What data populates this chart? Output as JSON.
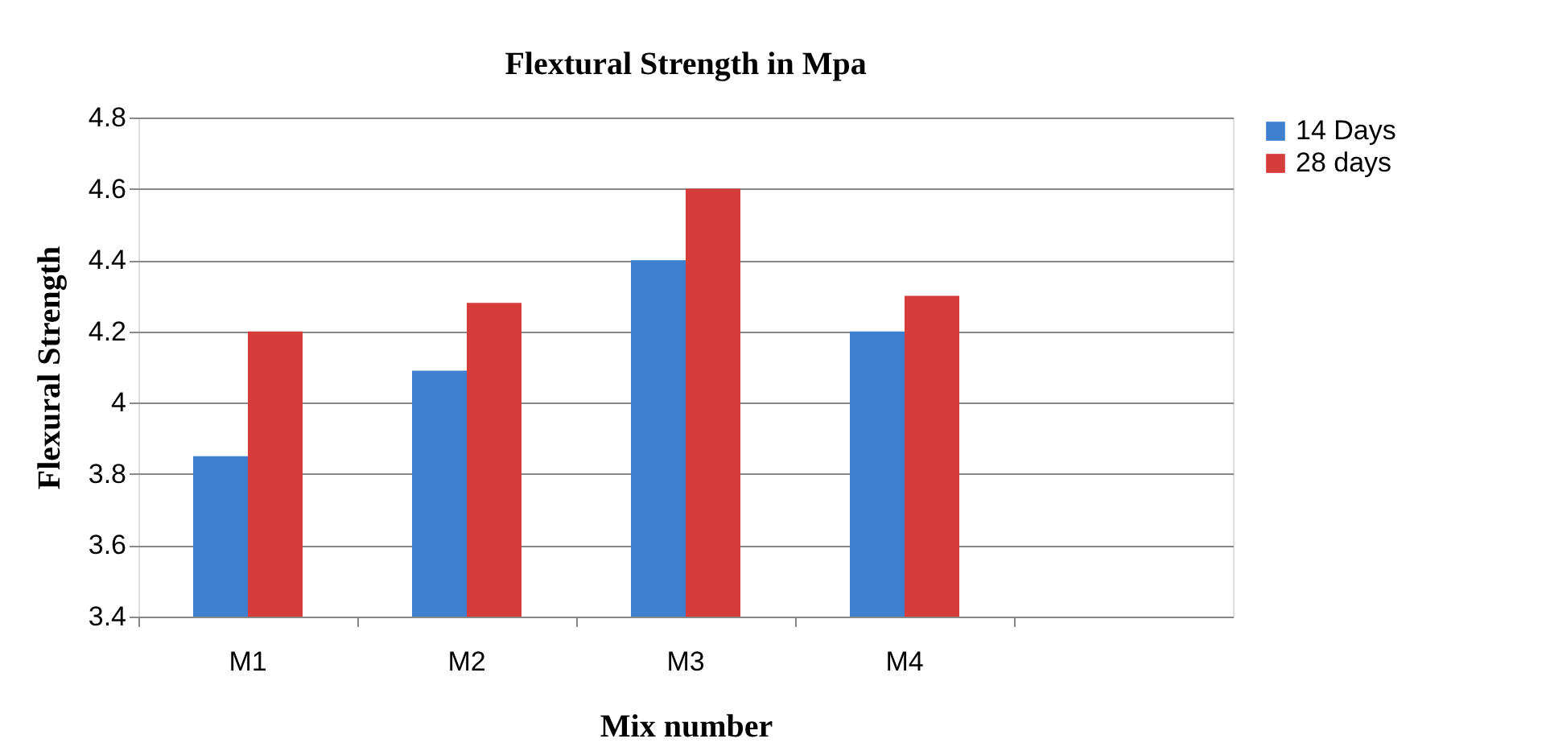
{
  "chart_data": {
    "type": "bar",
    "title": "Flextural Strength in Mpa",
    "xlabel": "Mix number",
    "ylabel": "Flexural Strength",
    "categories": [
      "M1",
      "M2",
      "M3",
      "M4",
      null
    ],
    "series": [
      {
        "name": "14 Days",
        "color": "#3f7fcf",
        "values": [
          3.85,
          4.09,
          4.4,
          4.2,
          null
        ]
      },
      {
        "name": "28 days",
        "color": "#d63c3a",
        "values": [
          4.2,
          4.28,
          4.6,
          4.3,
          null
        ]
      }
    ],
    "ylim": [
      3.4,
      4.8
    ],
    "yticks": [
      3.4,
      3.6,
      3.8,
      4,
      4.2,
      4.4,
      4.6,
      4.8
    ],
    "grid": "y",
    "legend": "right"
  }
}
